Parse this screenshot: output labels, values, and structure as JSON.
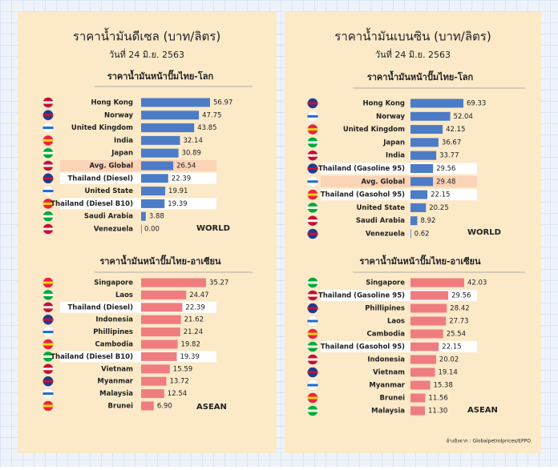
{
  "panels": [
    {
      "title": "ราคาน้ำมันดีเซล (บาท/ลิตร)",
      "date": "วันที่ 24 มิ.ย. 2563"
    },
    {
      "title": "ราคาน้ำมันเบนซิน (บาท/ลิตร)",
      "date": "วันที่ 24 มิ.ย. 2563"
    }
  ],
  "source": "อ้างอิงจาก : Globalpetrolprices/EPPO",
  "chart_data": [
    {
      "type": "bar",
      "title": "ราคาน้ำมันหน้าปั๊มไทย-โลก",
      "tag": "WORLD",
      "color": "#4d7cc6",
      "categories": [
        "Hong Kong",
        "Norway",
        "United Kingdom",
        "India",
        "Japan",
        "Avg. Global",
        "Thailand (Diesel)",
        "United State",
        "Thailand (Diesel B10)",
        "Saudi Arabia",
        "Venezuela"
      ],
      "values": [
        56.97,
        47.75,
        43.85,
        32.14,
        30.89,
        26.54,
        22.39,
        19.91,
        19.39,
        3.88,
        0
      ],
      "value_labels": [
        "56.97",
        "47.75",
        "43.85",
        "32.14",
        "30.89",
        "26.54",
        "22.39",
        "19.91",
        "19.39",
        "3.88",
        "0.00"
      ],
      "row_highlights": [
        null,
        null,
        null,
        null,
        null,
        "#fbd3b6",
        "#ffffff",
        null,
        "#ffffff",
        null,
        null
      ]
    },
    {
      "type": "bar",
      "title": "ราคาน้ำมันหน้าปั๊มไทย-อาเซียน",
      "tag": "ASEAN",
      "color": "#ef7d80",
      "categories": [
        "Singapore",
        "Laos",
        "Thailand (Diesel)",
        "Indonesia",
        "Phillipines",
        "Cambodia",
        "Thailand (Diesel B10)",
        "Vietnam",
        "Myanmar",
        "Malaysia",
        "Brunei"
      ],
      "values": [
        35.27,
        24.47,
        22.39,
        21.62,
        21.24,
        19.82,
        19.39,
        15.59,
        13.72,
        12.54,
        6.9
      ],
      "value_labels": [
        "35.27",
        "24.47",
        "22.39",
        "21.62",
        "21.24",
        "19.82",
        "19.39",
        "15.59",
        "13.72",
        "12.54",
        "6.90"
      ],
      "row_highlights": [
        null,
        null,
        "#ffffff",
        null,
        null,
        null,
        "#ffffff",
        null,
        null,
        null,
        null
      ]
    },
    {
      "type": "bar",
      "title": "ราคาน้ำมันหน้าปั๊มไทย-โลก",
      "tag": "WORLD",
      "color": "#4d7cc6",
      "categories": [
        "Hong Kong",
        "Norway",
        "United Kingdom",
        "Japan",
        "India",
        "Thailand (Gasoline 95)",
        "Avg. Global",
        "Thailand (Gasohol 95)",
        "United State",
        "Saudi Arabia",
        "Venezuela"
      ],
      "values": [
        69.33,
        52.04,
        42.15,
        36.67,
        33.77,
        29.56,
        29.48,
        22.15,
        20.25,
        8.92,
        0.62
      ],
      "value_labels": [
        "69.33",
        "52.04",
        "42.15",
        "36.67",
        "33.77",
        "29.56",
        "29.48",
        "22.15",
        "20.25",
        "8.92",
        "0.62"
      ],
      "row_highlights": [
        null,
        null,
        null,
        null,
        null,
        "#ffffff",
        "#fbd3b6",
        "#ffffff",
        null,
        null,
        null
      ]
    },
    {
      "type": "bar",
      "title": "ราคาน้ำมันหน้าปั๊มไทย-อาเซียน",
      "tag": "ASEAN",
      "color": "#ef7d80",
      "categories": [
        "Singapore",
        "Thailand (Gasoline 95)",
        "Phillipines",
        "Laos",
        "Cambodia",
        "Thailand (Gasohol 95)",
        "Indonesia",
        "Vietnam",
        "Myanmar",
        "Brunei",
        "Malaysia"
      ],
      "values": [
        42.03,
        29.56,
        28.42,
        27.73,
        25.54,
        22.15,
        20.02,
        19.14,
        15.38,
        11.56,
        11.3
      ],
      "value_labels": [
        "42.03",
        "29.56",
        "28.42",
        "27.73",
        "25.54",
        "22.15",
        "20.02",
        "19.14",
        "15.38",
        "11.56",
        "11.30"
      ],
      "row_highlights": [
        null,
        "#ffffff",
        null,
        null,
        null,
        "#ffffff",
        null,
        null,
        null,
        null,
        null
      ]
    }
  ]
}
